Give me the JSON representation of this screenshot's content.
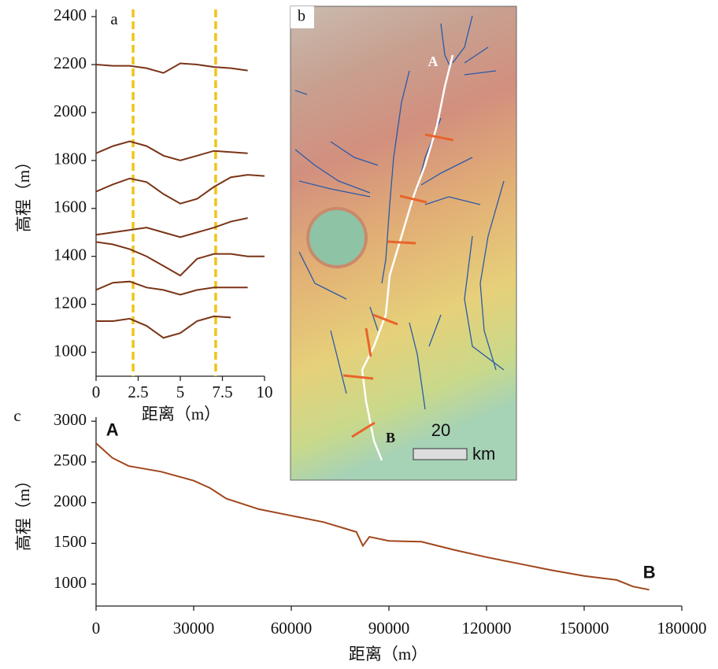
{
  "chart_data": [
    {
      "type": "line",
      "panel_label": "a",
      "xlabel": "距离（m）",
      "ylabel": "高程（m）",
      "x": [
        0,
        1,
        2,
        3,
        4,
        5,
        6,
        7,
        8,
        9,
        10
      ],
      "series": [
        {
          "color": "#7a3418",
          "values": [
            2200,
            2195,
            2195,
            2185,
            2165,
            2205,
            2200,
            2190,
            2185,
            2175,
            null
          ]
        },
        {
          "color": "#7a3418",
          "values": [
            1830,
            1860,
            1880,
            1860,
            1820,
            1800,
            1820,
            1840,
            1835,
            1830,
            null
          ]
        },
        {
          "color": "#7a3418",
          "values": [
            1670,
            1700,
            1725,
            1710,
            1660,
            1620,
            1640,
            1690,
            1730,
            1740,
            1735
          ]
        },
        {
          "color": "#7a3418",
          "values": [
            1490,
            1500,
            1510,
            1520,
            1500,
            1480,
            1500,
            1520,
            1545,
            1560,
            null
          ]
        },
        {
          "color": "#7a3418",
          "values": [
            1460,
            1450,
            1430,
            1400,
            1360,
            1320,
            1390,
            1410,
            1410,
            1400,
            1400
          ]
        },
        {
          "color": "#7a3418",
          "values": [
            1260,
            1290,
            1295,
            1270,
            1260,
            1240,
            1260,
            1270,
            1270,
            1270,
            null
          ]
        },
        {
          "color": "#7a3418",
          "values": [
            1130,
            1130,
            1140,
            1110,
            1060,
            1080,
            1130,
            1150,
            1145,
            null,
            null
          ]
        }
      ],
      "vlines": [
        2.2,
        7.1
      ],
      "vline_color": "#f0c419",
      "xlim": [
        0,
        10
      ],
      "xticks": [
        0,
        2.5,
        5,
        7.5,
        10
      ],
      "ylim": [
        900,
        2430
      ],
      "yticks": [
        1000,
        1200,
        1400,
        1600,
        1800,
        2000,
        2200,
        2400
      ]
    },
    {
      "type": "line",
      "panel_label": "c",
      "xlabel": "距离（m）",
      "ylabel": "高程（m）",
      "x": [
        0,
        5000,
        10000,
        20000,
        30000,
        35000,
        40000,
        50000,
        60000,
        70000,
        80000,
        82000,
        84000,
        90000,
        100000,
        110000,
        120000,
        130000,
        140000,
        150000,
        160000,
        165000,
        170000
      ],
      "series": [
        {
          "color": "#a0461c",
          "values": [
            2730,
            2550,
            2450,
            2380,
            2270,
            2180,
            2050,
            1920,
            1840,
            1760,
            1640,
            1470,
            1580,
            1530,
            1520,
            1420,
            1330,
            1250,
            1170,
            1100,
            1050,
            970,
            930
          ]
        }
      ],
      "annotations": [
        {
          "text": "A",
          "x": 5000,
          "y": 2880
        },
        {
          "text": "B",
          "x": 170000,
          "y": 1130
        }
      ],
      "xlim": [
        0,
        180000
      ],
      "xticks": [
        0,
        30000,
        60000,
        90000,
        120000,
        150000,
        180000
      ],
      "ylim": [
        730,
        3050
      ],
      "yticks": [
        1000,
        1500,
        2000,
        2500,
        3000
      ]
    }
  ],
  "map": {
    "panel_label": "b",
    "point_a": "A",
    "point_b": "B",
    "scale_value": "20",
    "scale_unit": "km"
  }
}
